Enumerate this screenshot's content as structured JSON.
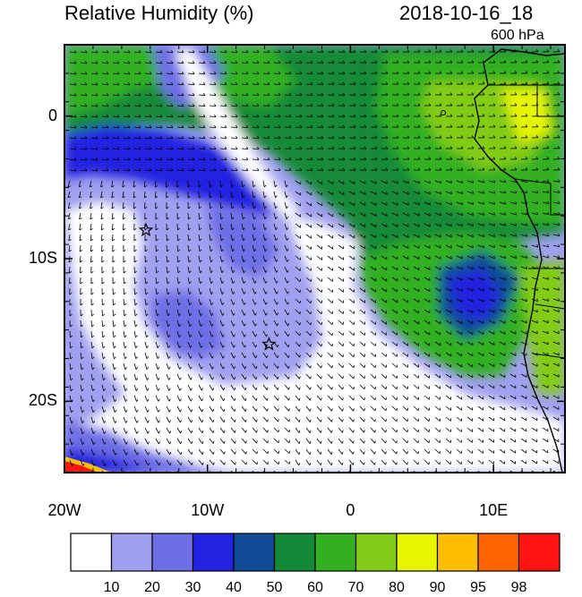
{
  "title": "Relative Humidity (%)",
  "datetime": "2018-10-16_18",
  "level": "600 hPa",
  "x_ticks": [
    {
      "label": "20W",
      "lon": -20
    },
    {
      "label": "10W",
      "lon": -10
    },
    {
      "label": "0",
      "lon": 0
    },
    {
      "label": "10E",
      "lon": 10
    }
  ],
  "y_ticks": [
    {
      "label": "0",
      "lat": 0
    },
    {
      "label": "10S",
      "lat": -10
    },
    {
      "label": "20S",
      "lat": -20
    }
  ],
  "extent": {
    "lon_min": -20,
    "lon_max": 15,
    "lat_min": -25,
    "lat_max": 5
  },
  "colorbar": {
    "colors": [
      "#ffffff",
      "#a0a0f0",
      "#6e6ee6",
      "#2222e0",
      "#0f4b96",
      "#128a38",
      "#32b022",
      "#82cc18",
      "#e6f500",
      "#ffbf00",
      "#ff6400",
      "#ff1414"
    ],
    "labels": [
      "10",
      "20",
      "30",
      "40",
      "50",
      "60",
      "70",
      "80",
      "90",
      "95",
      "98"
    ]
  },
  "markers": [
    {
      "name": "star",
      "lon": -14.3,
      "lat": -8.0
    },
    {
      "name": "star",
      "lon": -5.7,
      "lat": -16.0
    }
  ]
}
